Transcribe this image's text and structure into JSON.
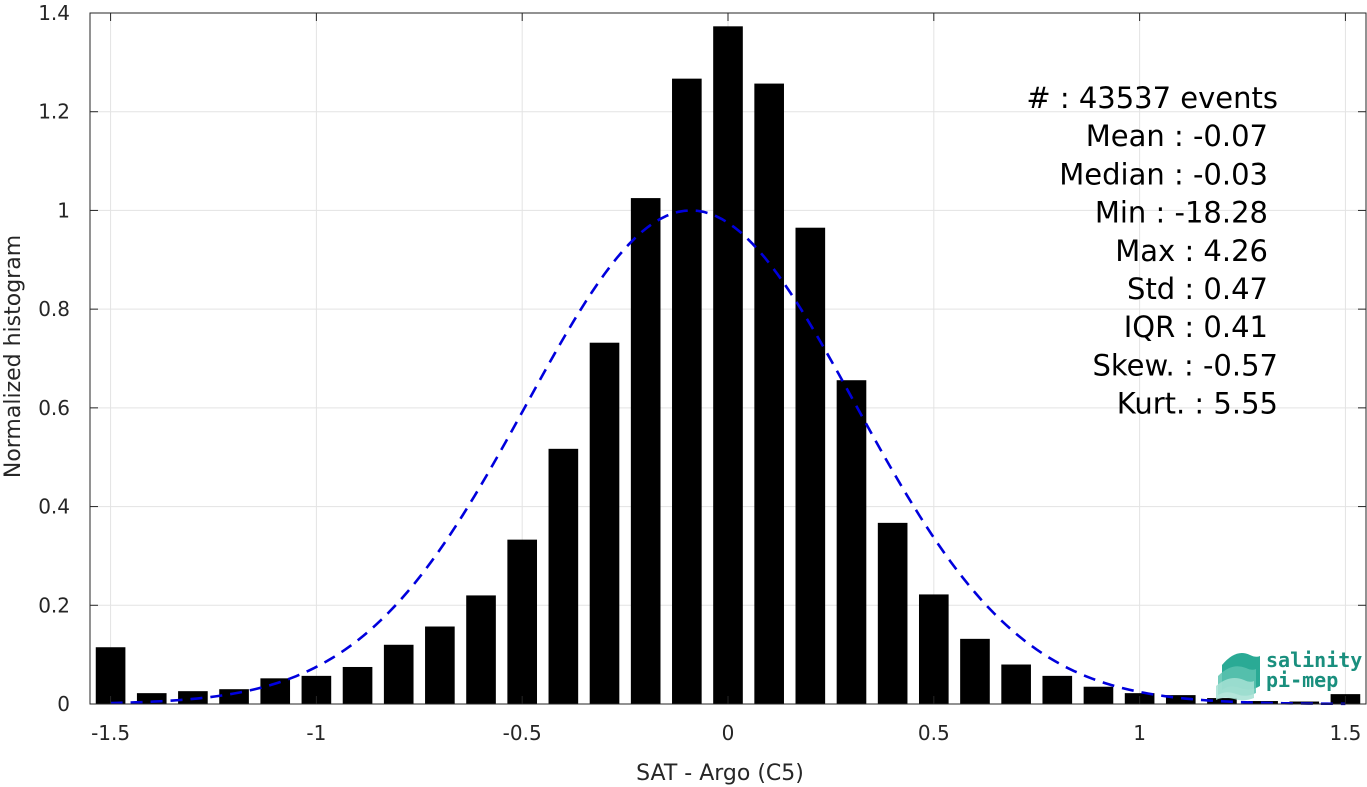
{
  "chart_data": {
    "type": "bar",
    "xlabel": "SAT - Argo (C5)",
    "ylabel": "Normalized histogram",
    "xlim": [
      -1.55,
      1.55
    ],
    "ylim": [
      0,
      1.4
    ],
    "xticks": [
      -1.5,
      -1,
      -0.5,
      0,
      0.5,
      1,
      1.5
    ],
    "xtick_labels": [
      "-1.5",
      "-1",
      "-0.5",
      "0",
      "0.5",
      "1",
      "1.5"
    ],
    "yticks": [
      0,
      0.2,
      0.4,
      0.6,
      0.8,
      1,
      1.2,
      1.4
    ],
    "ytick_labels": [
      "0",
      "0.2",
      "0.4",
      "0.6",
      "0.8",
      "1",
      "1.2",
      "1.4"
    ],
    "grid": true,
    "bar_color": "#000000",
    "bins": [
      -1.5,
      -1.4,
      -1.3,
      -1.2,
      -1.1,
      -1.0,
      -0.9,
      -0.8,
      -0.7,
      -0.6,
      -0.5,
      -0.4,
      -0.3,
      -0.2,
      -0.1,
      0.0,
      0.1,
      0.2,
      0.3,
      0.4,
      0.5,
      0.6,
      0.7,
      0.8,
      0.9,
      1.0,
      1.1,
      1.2,
      1.3,
      1.4,
      1.5
    ],
    "values": [
      0.115,
      0.022,
      0.026,
      0.03,
      0.052,
      0.057,
      0.075,
      0.12,
      0.157,
      0.22,
      0.333,
      0.517,
      0.732,
      1.025,
      1.267,
      1.373,
      1.257,
      0.965,
      0.656,
      0.367,
      0.222,
      0.132,
      0.08,
      0.057,
      0.035,
      0.022,
      0.018,
      0.012,
      0.006,
      0.005,
      0.02
    ],
    "fit_curve": {
      "style": "dashed",
      "color": "#0000dd",
      "mean": -0.09,
      "std": 0.4,
      "peak": 1.0,
      "x_range": [
        -1.5,
        1.5
      ]
    },
    "stats": [
      "#  : 43537 events",
      "Mean : -0.07",
      "Median : -0.03",
      "Min : -18.28",
      "Max : 4.26",
      "Std : 0.47",
      "IQR : 0.41",
      "Skew. : -0.57",
      "Kurt. : 5.55"
    ]
  },
  "logo": {
    "line1": "salinity",
    "line2": "pi-mep",
    "color": "#1a8f7e"
  }
}
